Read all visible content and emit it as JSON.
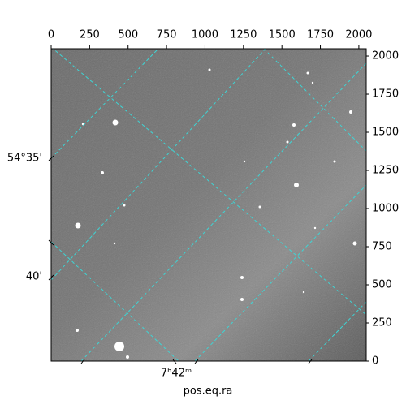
{
  "chart_data": {
    "type": "image",
    "xlabel": "pos.eq.ra",
    "xlim": [
      0,
      2048
    ],
    "xticks": [
      0,
      250,
      500,
      750,
      1000,
      1250,
      1500,
      1750,
      2000
    ],
    "ylim": [
      0,
      2048
    ],
    "yticks": [
      0,
      250,
      500,
      750,
      1000,
      1250,
      1500,
      1750,
      2000
    ],
    "dec_labels": [
      "54°35'",
      "40'"
    ],
    "ra_labels": [
      "7ʰ42ᵐ"
    ]
  }
}
